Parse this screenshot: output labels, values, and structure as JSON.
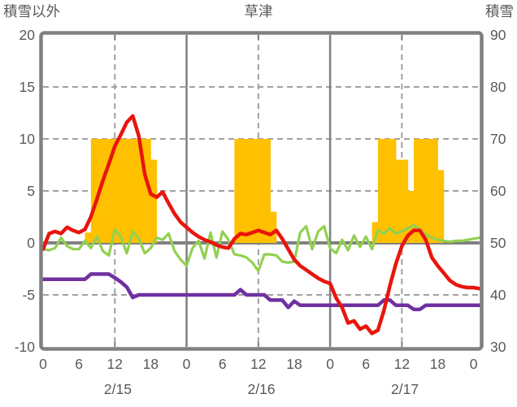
{
  "header": {
    "left_axis_title": "積雪以外",
    "title": "草津",
    "right_axis_title": "積雪"
  },
  "colors": {
    "bar": "#ffc000",
    "red": "#e8150d",
    "green": "#92d050",
    "purple": "#7030a0",
    "axis": "#808080",
    "grid": "#a0a0a0",
    "label": "#595959",
    "background": "#ffffff"
  },
  "chart_data": {
    "type": "combo bar+line, dual y-axis, hourly weather chart",
    "station": "草津",
    "n_points": 74,
    "hours_span": 73,
    "x_unit": "hour (0-23 per day, 3 days)",
    "left_axis": {
      "title": "積雪以外",
      "min": -10,
      "max": 20,
      "ticks": [
        20,
        15,
        10,
        5,
        0,
        -5,
        -10
      ]
    },
    "right_axis": {
      "title": "積雪",
      "min": 30,
      "max": 90,
      "ticks": [
        90,
        80,
        70,
        60,
        50,
        40,
        30
      ]
    },
    "x_ticks": [
      {
        "hour": 0,
        "label": "0"
      },
      {
        "hour": 6,
        "label": "6"
      },
      {
        "hour": 12,
        "label": "12"
      },
      {
        "hour": 18,
        "label": "18"
      },
      {
        "hour": 24,
        "label": "0"
      },
      {
        "hour": 30,
        "label": "6"
      },
      {
        "hour": 36,
        "label": "12"
      },
      {
        "hour": 42,
        "label": "18"
      },
      {
        "hour": 48,
        "label": "0"
      },
      {
        "hour": 54,
        "label": "6"
      },
      {
        "hour": 60,
        "label": "12"
      },
      {
        "hour": 66,
        "label": "18"
      },
      {
        "hour": 72,
        "label": "0"
      }
    ],
    "dates": [
      {
        "label": "2/15",
        "center_hour": 12.5
      },
      {
        "label": "2/16",
        "center_hour": 36.5
      },
      {
        "label": "2/17",
        "center_hour": 60.5
      }
    ],
    "grid": {
      "dashed_vertical_hours": [
        12,
        36,
        60
      ],
      "solid_vertical_hours": [
        24,
        48
      ],
      "dashed_horizontal_left_values": [
        15,
        10,
        5,
        -5
      ],
      "solid_zero_line_left_value": 0
    },
    "series": [
      {
        "name": "orange-bars",
        "type": "bar",
        "axis": "left",
        "color": "#ffc000",
        "values": [
          0,
          0,
          0,
          0,
          0,
          0,
          0,
          1,
          10,
          10,
          10,
          10,
          10,
          10,
          10,
          10,
          10,
          10,
          8,
          0,
          0,
          0,
          0,
          0,
          0,
          0,
          0,
          0,
          0,
          0,
          0,
          0,
          10,
          10,
          10,
          10,
          10,
          10,
          3,
          0,
          0,
          0,
          0,
          0,
          0,
          0,
          0,
          0,
          0,
          0,
          0,
          0,
          0,
          0,
          0,
          2,
          10,
          10,
          10,
          8,
          8,
          5,
          10,
          10,
          10,
          10,
          7,
          0,
          0,
          0,
          0,
          0,
          0,
          0
        ]
      },
      {
        "name": "green-line",
        "type": "line",
        "axis": "left",
        "color": "#92d050",
        "width": 3.2,
        "values": [
          -0.6,
          -0.7,
          -0.5,
          0.5,
          -0.3,
          -0.6,
          -0.6,
          0.2,
          -0.5,
          0.6,
          -0.8,
          -1.2,
          1.3,
          0.6,
          -1.0,
          1.1,
          0.4,
          -1.0,
          -0.5,
          0.5,
          0.3,
          0.9,
          -0.8,
          -1.6,
          -2.2,
          -0.5,
          0.2,
          -1.5,
          1.0,
          -1.4,
          1.1,
          0.3,
          -1.1,
          -1.2,
          -1.4,
          -1.9,
          -2.7,
          -1.1,
          -1.1,
          -1.2,
          -1.8,
          -1.9,
          -1.8,
          1.0,
          1.6,
          -0.6,
          1.1,
          1.6,
          -0.5,
          -1.0,
          0.3,
          -0.7,
          0.7,
          -0.4,
          0.6,
          -0.6,
          1.2,
          0.9,
          1.4,
          0.9,
          1.1,
          1.4,
          1.7,
          1.3,
          0.8,
          0.5,
          0.3,
          0.2,
          0.1,
          0.2,
          0.2,
          0.3,
          0.4,
          0.5
        ]
      },
      {
        "name": "purple-line",
        "type": "line",
        "axis": "right",
        "color": "#7030a0",
        "width": 4.5,
        "values": [
          43,
          43,
          43,
          43,
          43,
          43,
          43,
          43,
          44,
          44,
          44,
          44,
          43.3,
          42.5,
          41.5,
          39.5,
          40,
          40,
          40,
          40,
          40,
          40,
          40,
          40,
          40,
          40,
          40,
          40,
          40,
          40,
          40,
          40,
          40,
          41,
          40,
          40,
          40,
          40,
          39,
          39,
          39,
          37.6,
          38.8,
          38,
          38,
          38,
          38,
          38,
          38,
          38,
          38,
          38,
          38,
          38,
          38,
          38,
          38,
          39,
          39,
          38,
          38,
          38,
          37.2,
          37.2,
          38,
          38,
          38,
          38,
          38,
          38,
          38,
          38,
          38,
          38
        ]
      },
      {
        "name": "red-line",
        "type": "line",
        "axis": "left",
        "color": "#e8150d",
        "width": 4.5,
        "values": [
          -0.6,
          0.9,
          1.1,
          0.9,
          1.5,
          1.2,
          1.0,
          1.3,
          2.5,
          4.2,
          6.0,
          7.6,
          9.3,
          10.4,
          11.6,
          12.2,
          10.3,
          6.6,
          4.7,
          4.4,
          4.9,
          3.8,
          2.8,
          2.0,
          1.5,
          1.0,
          0.6,
          0.3,
          0.1,
          -0.2,
          -0.4,
          -0.5,
          0.4,
          0.9,
          0.8,
          1.0,
          1.2,
          1.0,
          0.8,
          1.2,
          0.4,
          -0.6,
          -1.6,
          -2.2,
          -2.6,
          -3.0,
          -3.4,
          -3.7,
          -3.9,
          -5.3,
          -6.2,
          -7.7,
          -7.5,
          -8.3,
          -8.0,
          -8.7,
          -8.4,
          -6.5,
          -4.1,
          -2.0,
          -0.3,
          0.7,
          1.2,
          1.2,
          0.3,
          -1.4,
          -2.2,
          -2.9,
          -3.6,
          -4.0,
          -4.2,
          -4.3,
          -4.3,
          -4.4
        ]
      }
    ]
  }
}
